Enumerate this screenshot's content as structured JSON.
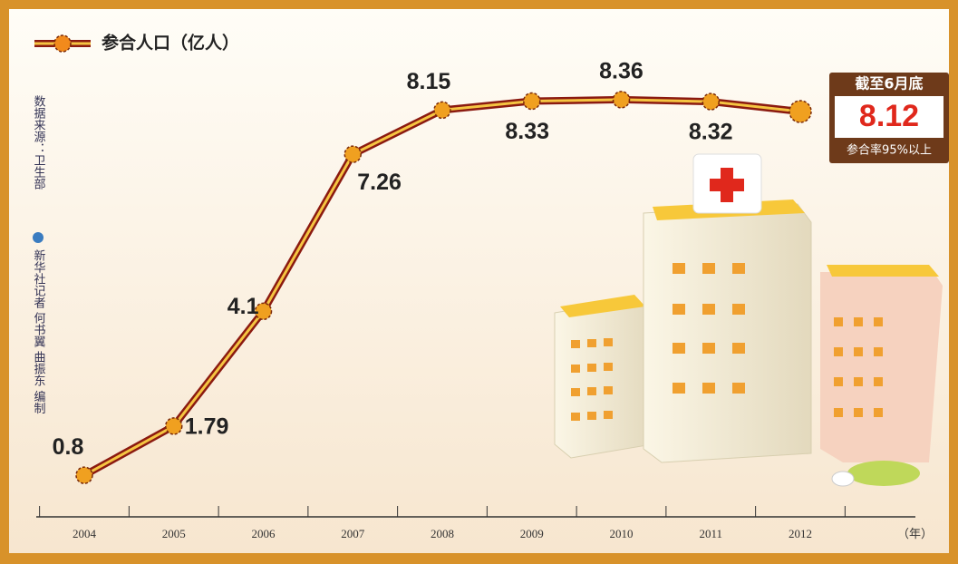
{
  "chart_data": {
    "type": "line",
    "legend_label": "参合人口（亿人）",
    "categories": [
      "2004",
      "2005",
      "2006",
      "2007",
      "2008",
      "2009",
      "2010",
      "2011",
      "2012"
    ],
    "series": [
      {
        "name": "参合人口（亿人）",
        "color": "#f0a020",
        "values": [
          0.8,
          1.79,
          4.1,
          7.26,
          8.15,
          8.33,
          8.36,
          8.32,
          8.12
        ]
      }
    ],
    "x_unit": "（年）",
    "callout": {
      "title": "截至6月底",
      "note": "参合率95%以上"
    },
    "source": "数据来源：卫生部",
    "credit": "新华社记者 何书翼 曲振东 编制"
  }
}
